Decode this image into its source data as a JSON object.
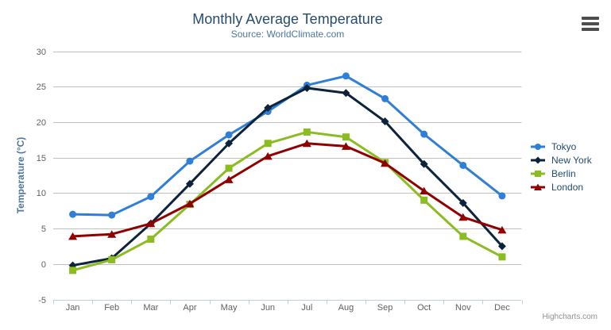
{
  "credits": "Highcharts.com",
  "colors": {
    "title": "#274b6d",
    "subtitle": "#4d759e",
    "axis_title": "#4d759e",
    "tick_label": "#606060",
    "grid": "#c0c0c0",
    "axis_line": "#c0d0e0",
    "legend_text": "#274b6d",
    "credits": "#909090",
    "menu_icon": "#4d4d4d"
  },
  "chart_data": {
    "type": "line",
    "title": "Monthly Average Temperature",
    "subtitle": "Source: WorldClimate.com",
    "xlabel": "",
    "ylabel": "Temperature (°C)",
    "ylim": [
      -5,
      30
    ],
    "yticks": [
      -5,
      0,
      5,
      10,
      15,
      20,
      25,
      30
    ],
    "grid": true,
    "legend_position": "right",
    "categories": [
      "Jan",
      "Feb",
      "Mar",
      "Apr",
      "May",
      "Jun",
      "Jul",
      "Aug",
      "Sep",
      "Oct",
      "Nov",
      "Dec"
    ],
    "series": [
      {
        "name": "Tokyo",
        "color": "#2f7ed8",
        "marker": "circle",
        "values": [
          7.0,
          6.9,
          9.5,
          14.5,
          18.2,
          21.5,
          25.2,
          26.5,
          23.3,
          18.3,
          13.9,
          9.6
        ]
      },
      {
        "name": "New York",
        "color": "#0d233a",
        "marker": "diamond",
        "values": [
          -0.2,
          0.8,
          5.7,
          11.3,
          17.0,
          22.0,
          24.8,
          24.1,
          20.1,
          14.1,
          8.6,
          2.5
        ]
      },
      {
        "name": "Berlin",
        "color": "#8bbc21",
        "marker": "square",
        "values": [
          -0.9,
          0.6,
          3.5,
          8.4,
          13.5,
          17.0,
          18.6,
          17.9,
          14.3,
          9.0,
          3.9,
          1.0
        ]
      },
      {
        "name": "London",
        "color": "#910000",
        "marker": "triangle",
        "values": [
          3.9,
          4.2,
          5.7,
          8.5,
          11.9,
          15.2,
          17.0,
          16.6,
          14.2,
          10.3,
          6.6,
          4.8
        ]
      }
    ]
  }
}
